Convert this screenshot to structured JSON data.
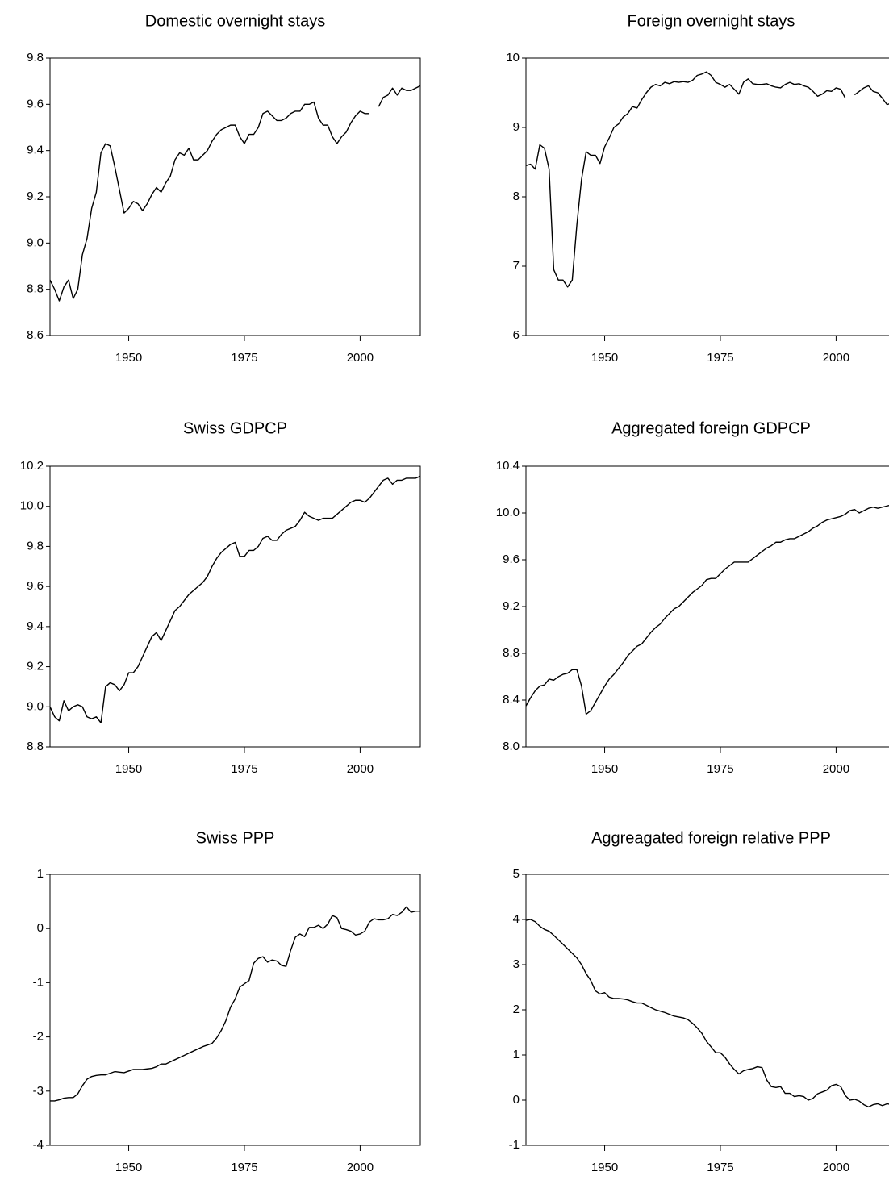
{
  "chart_data": [
    {
      "type": "line",
      "title": "Domestic overnight stays",
      "x": [
        1933,
        1934,
        1935,
        1936,
        1937,
        1938,
        1939,
        1940,
        1941,
        1942,
        1943,
        1944,
        1945,
        1946,
        1947,
        1948,
        1949,
        1950,
        1951,
        1952,
        1953,
        1954,
        1955,
        1956,
        1957,
        1958,
        1959,
        1960,
        1961,
        1962,
        1963,
        1964,
        1965,
        1966,
        1967,
        1968,
        1969,
        1970,
        1971,
        1972,
        1973,
        1974,
        1975,
        1976,
        1977,
        1978,
        1979,
        1980,
        1981,
        1982,
        1983,
        1984,
        1985,
        1986,
        1987,
        1988,
        1989,
        1990,
        1991,
        1992,
        1993,
        1994,
        1995,
        1996,
        1997,
        1998,
        1999,
        2000,
        2001,
        2002,
        2003,
        2004,
        2005,
        2006,
        2007,
        2008,
        2009,
        2010,
        2011,
        2012,
        2013
      ],
      "series": [
        {
          "color": "#000000",
          "values": [
            8.84,
            8.8,
            8.75,
            8.81,
            8.84,
            8.76,
            8.8,
            8.95,
            9.02,
            9.15,
            9.22,
            9.39,
            9.43,
            9.42,
            9.33,
            9.23,
            9.13,
            9.15,
            9.18,
            9.17,
            9.14,
            9.17,
            9.21,
            9.24,
            9.22,
            9.26,
            9.29,
            9.36,
            9.39,
            9.38,
            9.41,
            9.36,
            9.36,
            9.38,
            9.4,
            9.44,
            9.47,
            9.49,
            9.5,
            9.51,
            9.51,
            9.46,
            9.43,
            9.47,
            9.47,
            9.5,
            9.56,
            9.57,
            9.55,
            9.53,
            9.53,
            9.54,
            9.56,
            9.57,
            9.57,
            9.6,
            9.6,
            9.61,
            9.54,
            9.51,
            9.51,
            9.46,
            9.43,
            9.46,
            9.48,
            9.52,
            9.55,
            9.57,
            9.56,
            9.56,
            null,
            9.59,
            9.63,
            9.64,
            9.67,
            9.64,
            9.67,
            9.66,
            9.66,
            9.67,
            9.68
          ]
        }
      ],
      "xlim": [
        1933,
        2013
      ],
      "xticks": [
        1950,
        1975,
        2000
      ],
      "ylim": [
        8.6,
        9.8
      ],
      "yticks": [
        {
          "value": 8.6,
          "label": "8.6"
        },
        {
          "value": 8.8,
          "label": "8.8"
        },
        {
          "value": 9.0,
          "label": "9.0"
        },
        {
          "value": 9.2,
          "label": "9.2"
        },
        {
          "value": 9.4,
          "label": "9.4"
        },
        {
          "value": 9.6,
          "label": "9.6"
        },
        {
          "value": 9.8,
          "label": "9.8"
        }
      ]
    },
    {
      "type": "line",
      "title": "Foreign overnight stays",
      "x": [
        1933,
        1934,
        1935,
        1936,
        1937,
        1938,
        1939,
        1940,
        1941,
        1942,
        1943,
        1944,
        1945,
        1946,
        1947,
        1948,
        1949,
        1950,
        1951,
        1952,
        1953,
        1954,
        1955,
        1956,
        1957,
        1958,
        1959,
        1960,
        1961,
        1962,
        1963,
        1964,
        1965,
        1966,
        1967,
        1968,
        1969,
        1970,
        1971,
        1972,
        1973,
        1974,
        1975,
        1976,
        1977,
        1978,
        1979,
        1980,
        1981,
        1982,
        1983,
        1984,
        1985,
        1986,
        1987,
        1988,
        1989,
        1990,
        1991,
        1992,
        1993,
        1994,
        1995,
        1996,
        1997,
        1998,
        1999,
        2000,
        2001,
        2002,
        2003,
        2004,
        2005,
        2006,
        2007,
        2008,
        2009,
        2010,
        2011,
        2012,
        2013
      ],
      "series": [
        {
          "color": "#000000",
          "values": [
            8.45,
            8.47,
            8.4,
            8.75,
            8.7,
            8.4,
            6.95,
            6.8,
            6.8,
            6.7,
            6.8,
            7.6,
            8.25,
            8.65,
            8.6,
            8.6,
            8.48,
            8.72,
            8.85,
            9.0,
            9.05,
            9.15,
            9.2,
            9.3,
            9.28,
            9.4,
            9.5,
            9.58,
            9.62,
            9.6,
            9.65,
            9.63,
            9.66,
            9.65,
            9.66,
            9.65,
            9.68,
            9.75,
            9.77,
            9.8,
            9.75,
            9.65,
            9.62,
            9.58,
            9.62,
            9.55,
            9.48,
            9.65,
            9.7,
            9.63,
            9.62,
            9.62,
            9.63,
            9.6,
            9.58,
            9.57,
            9.62,
            9.65,
            9.62,
            9.63,
            9.6,
            9.58,
            9.52,
            9.45,
            9.48,
            9.53,
            9.52,
            9.57,
            9.55,
            9.42,
            null,
            9.47,
            9.52,
            9.57,
            9.6,
            9.52,
            9.5,
            9.42,
            9.33,
            9.35,
            9.32
          ]
        }
      ],
      "xlim": [
        1933,
        2013
      ],
      "xticks": [
        1950,
        1975,
        2000
      ],
      "ylim": [
        6,
        10
      ],
      "yticks": [
        6,
        7,
        8,
        9,
        10
      ]
    },
    {
      "type": "line",
      "title": "Swiss GDPCP",
      "x": [
        1933,
        1934,
        1935,
        1936,
        1937,
        1938,
        1939,
        1940,
        1941,
        1942,
        1943,
        1944,
        1945,
        1946,
        1947,
        1948,
        1949,
        1950,
        1951,
        1952,
        1953,
        1954,
        1955,
        1956,
        1957,
        1958,
        1959,
        1960,
        1961,
        1962,
        1963,
        1964,
        1965,
        1966,
        1967,
        1968,
        1969,
        1970,
        1971,
        1972,
        1973,
        1974,
        1975,
        1976,
        1977,
        1978,
        1979,
        1980,
        1981,
        1982,
        1983,
        1984,
        1985,
        1986,
        1987,
        1988,
        1989,
        1990,
        1991,
        1992,
        1993,
        1994,
        1995,
        1996,
        1997,
        1998,
        1999,
        2000,
        2001,
        2002,
        2003,
        2004,
        2005,
        2006,
        2007,
        2008,
        2009,
        2010,
        2011,
        2012,
        2013
      ],
      "series": [
        {
          "color": "#000000",
          "values": [
            9.0,
            8.95,
            8.93,
            9.03,
            8.98,
            9.0,
            9.01,
            9.0,
            8.95,
            8.94,
            8.95,
            8.92,
            9.1,
            9.12,
            9.11,
            9.08,
            9.11,
            9.17,
            9.17,
            9.2,
            9.25,
            9.3,
            9.35,
            9.37,
            9.33,
            9.38,
            9.43,
            9.48,
            9.5,
            9.53,
            9.56,
            9.58,
            9.6,
            9.62,
            9.65,
            9.7,
            9.74,
            9.77,
            9.79,
            9.81,
            9.82,
            9.75,
            9.75,
            9.78,
            9.78,
            9.8,
            9.84,
            9.85,
            9.83,
            9.83,
            9.86,
            9.88,
            9.89,
            9.9,
            9.93,
            9.97,
            9.95,
            9.94,
            9.93,
            9.94,
            9.94,
            9.94,
            9.96,
            9.98,
            10.0,
            10.02,
            10.03,
            10.03,
            10.02,
            10.04,
            10.07,
            10.1,
            10.13,
            10.14,
            10.11,
            10.13,
            10.13,
            10.14,
            10.14,
            10.14,
            10.15
          ]
        }
      ],
      "xlim": [
        1933,
        2013
      ],
      "xticks": [
        1950,
        1975,
        2000
      ],
      "ylim": [
        8.8,
        10.2
      ],
      "yticks": [
        {
          "value": 8.8,
          "label": "8.8"
        },
        {
          "value": 9.0,
          "label": "9.0"
        },
        {
          "value": 9.2,
          "label": "9.2"
        },
        {
          "value": 9.4,
          "label": "9.4"
        },
        {
          "value": 9.6,
          "label": "9.6"
        },
        {
          "value": 9.8,
          "label": "9.8"
        },
        {
          "value": 10.0,
          "label": "10.0"
        },
        {
          "value": 10.2,
          "label": "10.2"
        }
      ]
    },
    {
      "type": "line",
      "title": "Aggregated foreign GDPCP",
      "x": [
        1933,
        1934,
        1935,
        1936,
        1937,
        1938,
        1939,
        1940,
        1941,
        1942,
        1943,
        1944,
        1945,
        1946,
        1947,
        1948,
        1949,
        1950,
        1951,
        1952,
        1953,
        1954,
        1955,
        1956,
        1957,
        1958,
        1959,
        1960,
        1961,
        1962,
        1963,
        1964,
        1965,
        1966,
        1967,
        1968,
        1969,
        1970,
        1971,
        1972,
        1973,
        1974,
        1975,
        1976,
        1977,
        1978,
        1979,
        1980,
        1981,
        1982,
        1983,
        1984,
        1985,
        1986,
        1987,
        1988,
        1989,
        1990,
        1991,
        1992,
        1993,
        1994,
        1995,
        1996,
        1997,
        1998,
        1999,
        2000,
        2001,
        2002,
        2003,
        2004,
        2005,
        2006,
        2007,
        2008,
        2009,
        2010,
        2011,
        2012,
        2013
      ],
      "series": [
        {
          "color": "#000000",
          "values": [
            8.35,
            8.42,
            8.48,
            8.52,
            8.53,
            8.58,
            8.57,
            8.6,
            8.62,
            8.63,
            8.66,
            8.66,
            8.52,
            8.28,
            8.31,
            8.38,
            8.45,
            8.52,
            8.58,
            8.62,
            8.67,
            8.72,
            8.78,
            8.82,
            8.86,
            8.88,
            8.93,
            8.98,
            9.02,
            9.05,
            9.1,
            9.14,
            9.18,
            9.2,
            9.24,
            9.28,
            9.32,
            9.35,
            9.38,
            9.43,
            9.44,
            9.44,
            9.48,
            9.52,
            9.55,
            9.58,
            9.58,
            9.58,
            9.58,
            9.61,
            9.64,
            9.67,
            9.7,
            9.72,
            9.75,
            9.75,
            9.77,
            9.78,
            9.78,
            9.8,
            9.82,
            9.84,
            9.87,
            9.89,
            9.92,
            9.94,
            9.95,
            9.96,
            9.97,
            9.99,
            10.02,
            10.03,
            10.0,
            10.02,
            10.04,
            10.05,
            10.04,
            10.05,
            10.06,
            10.07,
            10.07
          ]
        }
      ],
      "xlim": [
        1933,
        2013
      ],
      "xticks": [
        1950,
        1975,
        2000
      ],
      "ylim": [
        8.0,
        10.4
      ],
      "yticks": [
        {
          "value": 8.0,
          "label": "8.0"
        },
        8.4,
        8.8,
        9.2,
        9.6,
        {
          "value": 10.0,
          "label": "10.0"
        },
        10.4
      ]
    },
    {
      "type": "line",
      "title": "Swiss PPP",
      "x": [
        1933,
        1934,
        1935,
        1936,
        1937,
        1938,
        1939,
        1940,
        1941,
        1942,
        1943,
        1944,
        1945,
        1946,
        1947,
        1948,
        1949,
        1950,
        1951,
        1952,
        1953,
        1954,
        1955,
        1956,
        1957,
        1958,
        1959,
        1960,
        1961,
        1962,
        1963,
        1964,
        1965,
        1966,
        1967,
        1968,
        1969,
        1970,
        1971,
        1972,
        1973,
        1974,
        1975,
        1976,
        1977,
        1978,
        1979,
        1980,
        1981,
        1982,
        1983,
        1984,
        1985,
        1986,
        1987,
        1988,
        1989,
        1990,
        1991,
        1992,
        1993,
        1994,
        1995,
        1996,
        1997,
        1998,
        1999,
        2000,
        2001,
        2002,
        2003,
        2004,
        2005,
        2006,
        2007,
        2008,
        2009,
        2010,
        2011,
        2012,
        2013
      ],
      "series": [
        {
          "color": "#000000",
          "values": [
            -3.18,
            -3.18,
            -3.16,
            -3.13,
            -3.12,
            -3.12,
            -3.05,
            -2.9,
            -2.78,
            -2.73,
            -2.71,
            -2.7,
            -2.7,
            -2.67,
            -2.64,
            -2.65,
            -2.66,
            -2.63,
            -2.6,
            -2.6,
            -2.6,
            -2.59,
            -2.58,
            -2.55,
            -2.5,
            -2.5,
            -2.46,
            -2.42,
            -2.38,
            -2.34,
            -2.3,
            -2.26,
            -2.22,
            -2.18,
            -2.15,
            -2.12,
            -2.02,
            -1.88,
            -1.7,
            -1.45,
            -1.3,
            -1.08,
            -1.02,
            -0.96,
            -0.64,
            -0.55,
            -0.52,
            -0.62,
            -0.58,
            -0.6,
            -0.68,
            -0.7,
            -0.4,
            -0.16,
            -0.1,
            -0.15,
            0.02,
            0.02,
            0.06,
            0.0,
            0.08,
            0.24,
            0.2,
            0.0,
            -0.02,
            -0.05,
            -0.12,
            -0.1,
            -0.05,
            0.12,
            0.18,
            0.16,
            0.16,
            0.18,
            0.26,
            0.24,
            0.3,
            0.4,
            0.3,
            0.32,
            0.32
          ]
        }
      ],
      "xlim": [
        1933,
        2013
      ],
      "xticks": [
        1950,
        1975,
        2000
      ],
      "ylim": [
        -4,
        1
      ],
      "yticks": [
        -4,
        -3,
        -2,
        -1,
        0,
        1
      ]
    },
    {
      "type": "line",
      "title": "Aggreagated foreign relative PPP",
      "x": [
        1933,
        1934,
        1935,
        1936,
        1937,
        1938,
        1939,
        1940,
        1941,
        1942,
        1943,
        1944,
        1945,
        1946,
        1947,
        1948,
        1949,
        1950,
        1951,
        1952,
        1953,
        1954,
        1955,
        1956,
        1957,
        1958,
        1959,
        1960,
        1961,
        1962,
        1963,
        1964,
        1965,
        1966,
        1967,
        1968,
        1969,
        1970,
        1971,
        1972,
        1973,
        1974,
        1975,
        1976,
        1977,
        1978,
        1979,
        1980,
        1981,
        1982,
        1983,
        1984,
        1985,
        1986,
        1987,
        1988,
        1989,
        1990,
        1991,
        1992,
        1993,
        1994,
        1995,
        1996,
        1997,
        1998,
        1999,
        2000,
        2001,
        2002,
        2003,
        2004,
        2005,
        2006,
        2007,
        2008,
        2009,
        2010,
        2011,
        2012,
        2013
      ],
      "series": [
        {
          "color": "#000000",
          "values": [
            3.98,
            4.0,
            3.95,
            3.85,
            3.78,
            3.74,
            3.65,
            3.55,
            3.45,
            3.35,
            3.25,
            3.15,
            3.0,
            2.8,
            2.65,
            2.42,
            2.35,
            2.38,
            2.28,
            2.25,
            2.25,
            2.24,
            2.22,
            2.18,
            2.15,
            2.15,
            2.1,
            2.05,
            2.0,
            1.97,
            1.94,
            1.9,
            1.86,
            1.84,
            1.82,
            1.78,
            1.7,
            1.6,
            1.48,
            1.3,
            1.18,
            1.05,
            1.05,
            0.95,
            0.8,
            0.68,
            0.58,
            0.65,
            0.68,
            0.7,
            0.74,
            0.72,
            0.45,
            0.3,
            0.28,
            0.3,
            0.15,
            0.15,
            0.08,
            0.1,
            0.08,
            0.0,
            0.04,
            0.14,
            0.18,
            0.22,
            0.32,
            0.35,
            0.3,
            0.1,
            0.0,
            0.02,
            -0.02,
            -0.1,
            -0.15,
            -0.1,
            -0.08,
            -0.12,
            -0.08,
            -0.1,
            -0.1
          ]
        }
      ],
      "xlim": [
        1933,
        2013
      ],
      "xticks": [
        1950,
        1975,
        2000
      ],
      "ylim": [
        -1,
        5
      ],
      "yticks": [
        -1,
        0,
        1,
        2,
        3,
        4,
        5
      ]
    }
  ]
}
